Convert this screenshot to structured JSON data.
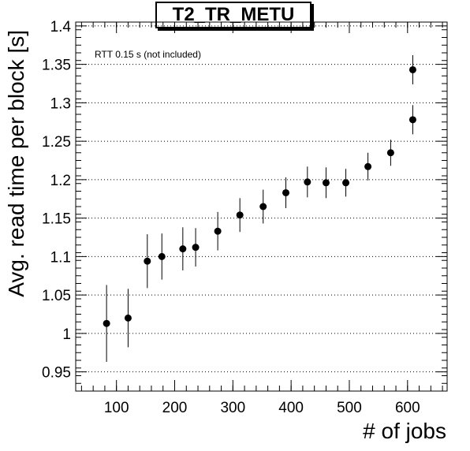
{
  "chart_data": {
    "type": "scatter",
    "title": "T2_TR_METU",
    "annotation": "RTT 0.15 s (not included)",
    "xlabel": "# of jobs",
    "ylabel": "Avg. read time per block [s]",
    "xlim": [
      30,
      668
    ],
    "ylim": [
      0.925,
      1.405
    ],
    "xticks": [
      100,
      200,
      300,
      400,
      500,
      600
    ],
    "yticks": [
      0.95,
      1,
      1.05,
      1.1,
      1.15,
      1.2,
      1.25,
      1.3,
      1.35,
      1.4
    ],
    "xtick_labels": [
      "100",
      "200",
      "300",
      "400",
      "500",
      "600"
    ],
    "ytick_labels": [
      "0.95",
      "1",
      "1.05",
      "1.1",
      "1.15",
      "1.2",
      "1.25",
      "1.3",
      "1.35",
      "1.4"
    ],
    "grid": "horizontal dotted",
    "marker_color": "#000000",
    "points": [
      {
        "x": 83,
        "y": 1.013,
        "err": 0.05
      },
      {
        "x": 120,
        "y": 1.02,
        "err": 0.038
      },
      {
        "x": 153,
        "y": 1.094,
        "err": 0.035
      },
      {
        "x": 178,
        "y": 1.1,
        "err": 0.03
      },
      {
        "x": 214,
        "y": 1.11,
        "err": 0.028
      },
      {
        "x": 236,
        "y": 1.112,
        "err": 0.025
      },
      {
        "x": 274,
        "y": 1.133,
        "err": 0.025
      },
      {
        "x": 312,
        "y": 1.154,
        "err": 0.022
      },
      {
        "x": 352,
        "y": 1.165,
        "err": 0.022
      },
      {
        "x": 391,
        "y": 1.183,
        "err": 0.02
      },
      {
        "x": 428,
        "y": 1.197,
        "err": 0.02
      },
      {
        "x": 460,
        "y": 1.196,
        "err": 0.02
      },
      {
        "x": 494,
        "y": 1.196,
        "err": 0.018
      },
      {
        "x": 532,
        "y": 1.217,
        "err": 0.018
      },
      {
        "x": 571,
        "y": 1.235,
        "err": 0.017
      },
      {
        "x": 609,
        "y": 1.278,
        "err": 0.019
      },
      {
        "x": 609,
        "y": 1.343,
        "err": 0.019
      }
    ]
  }
}
